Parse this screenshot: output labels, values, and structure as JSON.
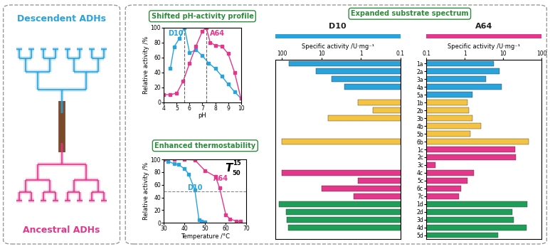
{
  "illustration": {
    "top_label": "Descendent ADHs",
    "bottom_label": "Ancestral ADHs"
  },
  "section_title": "Expanded substrate spectrum",
  "chart_data": [
    {
      "type": "line",
      "title": "Shifted pH-activity profile",
      "xlabel": "pH",
      "ylabel": "Relative activity /%",
      "xlim": [
        4,
        10
      ],
      "xticks": [
        4,
        5,
        6,
        7,
        8,
        9,
        10
      ],
      "ylim": [
        0,
        100
      ],
      "yticks": [
        0,
        20,
        40,
        60,
        80,
        100
      ],
      "reference_lines": {
        "x": [
          5.6,
          7.3
        ]
      },
      "series": [
        {
          "name": "D10",
          "color": "#29a3dc",
          "marker": "s",
          "x": [
            4.5,
            4.8,
            5.2,
            5.6,
            6.0,
            6.5,
            7.0,
            7.5,
            8.0,
            8.5,
            9.0,
            9.5,
            10.0
          ],
          "values": [
            45,
            74,
            85,
            100,
            66,
            70,
            62,
            52,
            45,
            35,
            24,
            14,
            5
          ]
        },
        {
          "name": "A64",
          "color": "#e4368b",
          "marker": "s",
          "x": [
            4.0,
            4.5,
            5.0,
            5.5,
            6.0,
            6.5,
            7.0,
            7.3,
            7.6,
            8.0,
            8.5,
            9.0,
            9.5,
            10.0
          ],
          "values": [
            10,
            10,
            12,
            28,
            52,
            75,
            95,
            100,
            80,
            76,
            75,
            65,
            40,
            5
          ]
        }
      ]
    },
    {
      "type": "line",
      "title": "Enhanced thermostability",
      "xlabel": "Temperature /°C",
      "ylabel": "Relative activity /%",
      "xlim": [
        30,
        70
      ],
      "xticks": [
        30,
        40,
        50,
        60,
        70
      ],
      "ylim": [
        0,
        100
      ],
      "yticks": [
        0,
        20,
        40,
        60,
        80,
        100
      ],
      "reference_lines": {
        "y": [
          50
        ]
      },
      "annotation": {
        "main": "T",
        "superscript": "15",
        "subscript": "50"
      },
      "series": [
        {
          "name": "D10",
          "color": "#29a3dc",
          "marker": "s",
          "x": [
            30,
            32,
            35,
            37,
            40,
            42,
            45,
            47,
            48,
            50
          ],
          "values": [
            100,
            97,
            93,
            92,
            85,
            77,
            52,
            5,
            3,
            1
          ]
        },
        {
          "name": "A64",
          "color": "#e4368b",
          "marker": "s",
          "x": [
            30,
            35,
            40,
            45,
            50,
            55,
            57,
            60,
            62,
            65,
            67
          ],
          "values": [
            100,
            100,
            100,
            99,
            82,
            73,
            55,
            13,
            6,
            3,
            2
          ]
        }
      ]
    },
    {
      "type": "bar",
      "title": "D10",
      "color": "#29a3dc",
      "xlabel": "Specific activity /U·mg⁻¹",
      "orientation": "horizontal",
      "log": "x",
      "tick_labels": "x",
      "xlim": [
        150,
        0.1
      ],
      "xticks": [
        100,
        10,
        1,
        0.1
      ],
      "categories": [
        "1a",
        "2a",
        "3a",
        "4a",
        "5a",
        "1b",
        "2b",
        "3b",
        "4b",
        "5b",
        "6b",
        "1c",
        "2c",
        "3c",
        "4c",
        "5c",
        "6c",
        "7c",
        "1d",
        "2d",
        "3d",
        "4d",
        "5d"
      ],
      "values": [
        68,
        14,
        5.6,
        2.6,
        null,
        1.2,
        0.5,
        6.8,
        null,
        null,
        100,
        null,
        null,
        null,
        100,
        1.2,
        10,
        1.5,
        120,
        80,
        75,
        70,
        null
      ],
      "colors": [
        "#29a3dc",
        "#29a3dc",
        "#29a3dc",
        "#29a3dc",
        "#29a3dc",
        "#f5c342",
        "#f5c342",
        "#f5c342",
        "#f5c342",
        "#f5c342",
        "#f5c342",
        "#e4368b",
        "#e4368b",
        "#e4368b",
        "#e4368b",
        "#e4368b",
        "#e4368b",
        "#e4368b",
        "#1f9e5a",
        "#1f9e5a",
        "#1f9e5a",
        "#1f9e5a",
        "#1f9e5a"
      ]
    },
    {
      "type": "bar",
      "title": "A64",
      "color": "#e4368b",
      "xlabel": "Specific activity /U·mg⁻¹",
      "orientation": "horizontal",
      "log": "x",
      "tick_labels": true,
      "xlim": [
        0.1,
        100
      ],
      "xticks": [
        0.1,
        1,
        10,
        100
      ],
      "categories": [
        "1a",
        "2a",
        "3a",
        "4a",
        "5a",
        "1b",
        "2b",
        "3b",
        "4b",
        "5b",
        "6b",
        "1c",
        "2c",
        "3c",
        "4c",
        "5c",
        "6c",
        "7c",
        "1d",
        "2d",
        "3d",
        "4d",
        "5d"
      ],
      "values": [
        5.8,
        7.9,
        3.5,
        9,
        1.6,
        1.2,
        1.3,
        1.6,
        2.6,
        1.4,
        45,
        20,
        21,
        0.17,
        1.7,
        1.2,
        0.8,
        0.72,
        42,
        17,
        19,
        40,
        7.3
      ],
      "colors": [
        "#29a3dc",
        "#29a3dc",
        "#29a3dc",
        "#29a3dc",
        "#29a3dc",
        "#f5c342",
        "#f5c342",
        "#f5c342",
        "#f5c342",
        "#f5c342",
        "#f5c342",
        "#e4368b",
        "#e4368b",
        "#e4368b",
        "#e4368b",
        "#e4368b",
        "#e4368b",
        "#e4368b",
        "#1f9e5a",
        "#1f9e5a",
        "#1f9e5a",
        "#1f9e5a",
        "#1f9e5a"
      ]
    }
  ]
}
